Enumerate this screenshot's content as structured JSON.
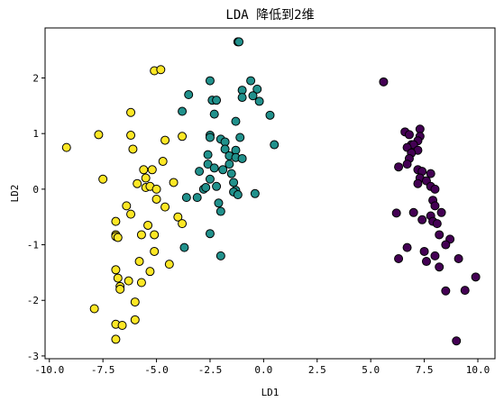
{
  "chart_data": {
    "type": "scatter",
    "title": "LDA 降低到2维",
    "xlabel": "LD1",
    "ylabel": "LD2",
    "xlim": [
      -10.2,
      10.8
    ],
    "ylim": [
      -3.05,
      2.9
    ],
    "xticks": [
      -10,
      -7.5,
      -5,
      -2.5,
      0,
      2.5,
      5,
      7.5,
      10
    ],
    "xtick_labels": [
      "-10.0",
      "-7.5",
      "-5.0",
      "-2.5",
      "0.0",
      "2.5",
      "5.0",
      "7.5",
      "10.0"
    ],
    "yticks": [
      -3,
      -2,
      -1,
      0,
      1,
      2
    ],
    "ytick_labels": [
      "-3",
      "-2",
      "-1",
      "0",
      "1",
      "2"
    ],
    "grid": false,
    "series": [
      {
        "color": "#fde725",
        "points": [
          [
            -9.2,
            0.75
          ],
          [
            -7.7,
            0.98
          ],
          [
            -7.5,
            0.18
          ],
          [
            -6.2,
            1.38
          ],
          [
            -6.2,
            0.97
          ],
          [
            -6.1,
            0.72
          ],
          [
            -5.1,
            2.13
          ],
          [
            -4.8,
            2.15
          ],
          [
            -4.6,
            0.88
          ],
          [
            -4.7,
            0.5
          ],
          [
            -5.6,
            0.35
          ],
          [
            -5.2,
            0.35
          ],
          [
            -5.5,
            0.2
          ],
          [
            -5.9,
            0.1
          ],
          [
            -5.5,
            0.03
          ],
          [
            -5.3,
            0.05
          ],
          [
            -5.0,
            0.0
          ],
          [
            -4.2,
            0.12
          ],
          [
            -3.8,
            0.95
          ],
          [
            -5.0,
            -0.18
          ],
          [
            -4.6,
            -0.32
          ],
          [
            -6.4,
            -0.3
          ],
          [
            -6.2,
            -0.45
          ],
          [
            -6.9,
            -0.58
          ],
          [
            -4.0,
            -0.5
          ],
          [
            -3.8,
            -0.62
          ],
          [
            -5.4,
            -0.65
          ],
          [
            -5.1,
            -0.82
          ],
          [
            -5.7,
            -0.82
          ],
          [
            -6.9,
            -0.82
          ],
          [
            -6.9,
            -0.85
          ],
          [
            -6.8,
            -0.87
          ],
          [
            -5.1,
            -1.12
          ],
          [
            -5.8,
            -1.3
          ],
          [
            -4.4,
            -1.35
          ],
          [
            -5.3,
            -1.48
          ],
          [
            -6.9,
            -1.45
          ],
          [
            -6.8,
            -1.6
          ],
          [
            -6.3,
            -1.65
          ],
          [
            -5.7,
            -1.68
          ],
          [
            -6.7,
            -1.75
          ],
          [
            -6.7,
            -1.8
          ],
          [
            -7.9,
            -2.15
          ],
          [
            -6.0,
            -2.03
          ],
          [
            -6.0,
            -2.35
          ],
          [
            -6.9,
            -2.43
          ],
          [
            -6.6,
            -2.45
          ],
          [
            -6.9,
            -2.7
          ]
        ]
      },
      {
        "color": "#21918c",
        "points": [
          [
            -1.2,
            2.65
          ],
          [
            -1.15,
            2.65
          ],
          [
            -0.6,
            1.95
          ],
          [
            -2.5,
            1.95
          ],
          [
            -1.0,
            1.78
          ],
          [
            -0.3,
            1.8
          ],
          [
            -0.5,
            1.68
          ],
          [
            -1.0,
            1.65
          ],
          [
            -3.5,
            1.7
          ],
          [
            -2.4,
            1.6
          ],
          [
            -2.2,
            1.6
          ],
          [
            -0.2,
            1.58
          ],
          [
            -3.8,
            1.4
          ],
          [
            -2.3,
            1.35
          ],
          [
            0.3,
            1.33
          ],
          [
            -1.3,
            1.22
          ],
          [
            -2.5,
            0.97
          ],
          [
            -2.5,
            0.93
          ],
          [
            -1.1,
            0.93
          ],
          [
            -2.0,
            0.9
          ],
          [
            -1.8,
            0.85
          ],
          [
            0.5,
            0.8
          ],
          [
            -1.8,
            0.72
          ],
          [
            -1.3,
            0.7
          ],
          [
            -2.6,
            0.62
          ],
          [
            -1.6,
            0.6
          ],
          [
            -1.3,
            0.57
          ],
          [
            -1.0,
            0.55
          ],
          [
            -2.6,
            0.45
          ],
          [
            -1.6,
            0.45
          ],
          [
            -2.3,
            0.38
          ],
          [
            -1.9,
            0.35
          ],
          [
            -3.0,
            0.32
          ],
          [
            -1.5,
            0.28
          ],
          [
            -2.5,
            0.18
          ],
          [
            -2.2,
            0.05
          ],
          [
            -1.4,
            0.12
          ],
          [
            -2.8,
            0.0
          ],
          [
            -2.7,
            0.03
          ],
          [
            -3.1,
            -0.15
          ],
          [
            -1.3,
            -0.02
          ],
          [
            -1.4,
            -0.05
          ],
          [
            -0.4,
            -0.08
          ],
          [
            -1.2,
            -0.1
          ],
          [
            -3.6,
            -0.15
          ],
          [
            -2.1,
            -0.25
          ],
          [
            -2.0,
            -0.4
          ],
          [
            -2.5,
            -0.8
          ],
          [
            -3.7,
            -1.05
          ],
          [
            -2.0,
            -1.2
          ]
        ]
      },
      {
        "color": "#440154",
        "points": [
          [
            5.6,
            1.93
          ],
          [
            6.6,
            1.03
          ],
          [
            6.8,
            0.98
          ],
          [
            7.3,
            1.08
          ],
          [
            7.3,
            0.95
          ],
          [
            7.2,
            0.87
          ],
          [
            6.9,
            0.8
          ],
          [
            7.0,
            0.8
          ],
          [
            6.7,
            0.75
          ],
          [
            7.2,
            0.7
          ],
          [
            6.9,
            0.65
          ],
          [
            6.8,
            0.55
          ],
          [
            6.7,
            0.45
          ],
          [
            6.3,
            0.4
          ],
          [
            7.2,
            0.35
          ],
          [
            7.4,
            0.32
          ],
          [
            7.8,
            0.28
          ],
          [
            7.3,
            0.2
          ],
          [
            7.6,
            0.15
          ],
          [
            7.2,
            0.1
          ],
          [
            7.8,
            0.05
          ],
          [
            8.0,
            0.0
          ],
          [
            7.9,
            -0.2
          ],
          [
            8.0,
            -0.3
          ],
          [
            8.3,
            -0.42
          ],
          [
            7.4,
            -0.55
          ],
          [
            7.8,
            -0.48
          ],
          [
            7.9,
            -0.58
          ],
          [
            8.1,
            -0.62
          ],
          [
            8.2,
            -0.82
          ],
          [
            7.0,
            -0.42
          ],
          [
            6.2,
            -0.43
          ],
          [
            6.3,
            -1.25
          ],
          [
            6.7,
            -1.05
          ],
          [
            8.7,
            -0.9
          ],
          [
            8.5,
            -1.0
          ],
          [
            7.5,
            -1.12
          ],
          [
            8.0,
            -1.2
          ],
          [
            7.6,
            -1.3
          ],
          [
            8.2,
            -1.4
          ],
          [
            9.1,
            -1.25
          ],
          [
            9.9,
            -1.58
          ],
          [
            8.5,
            -1.83
          ],
          [
            9.4,
            -1.82
          ],
          [
            9.0,
            -2.73
          ]
        ]
      }
    ]
  }
}
